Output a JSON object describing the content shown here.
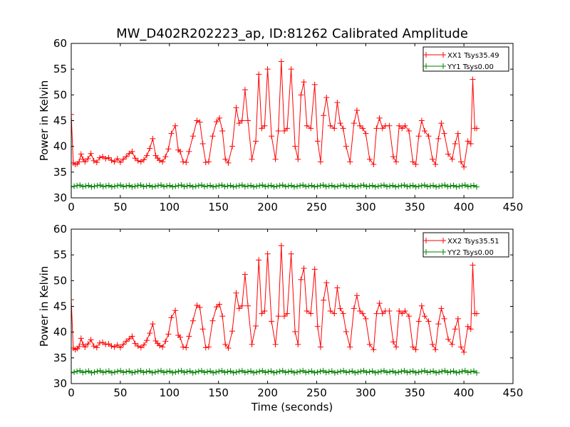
{
  "figure": {
    "title": "MW_D402R202223_ap, ID:81262 Calibrated Amplitude"
  },
  "chart_data": [
    {
      "type": "line",
      "title": "MW_D402R202223_ap, ID:81262 Calibrated Amplitude",
      "xlabel": "",
      "ylabel": "Power in Kelvin",
      "xlim": [
        0,
        450
      ],
      "ylim": [
        30,
        60
      ],
      "xticks": [
        0,
        50,
        100,
        150,
        200,
        250,
        300,
        350,
        400,
        450
      ],
      "yticks": [
        30,
        35,
        40,
        45,
        50,
        55,
        60
      ],
      "grid": false,
      "legend_position": "top-right",
      "markers": "plus",
      "series": [
        {
          "name": "XX1 Tsys35.49",
          "color": "#ff0000",
          "x": [
            0,
            2,
            4,
            6,
            8,
            10,
            12,
            14,
            17,
            20,
            23,
            26,
            29,
            32,
            35,
            38,
            41,
            44,
            47,
            50,
            53,
            56,
            59,
            62,
            65,
            68,
            71,
            74,
            77,
            80,
            83,
            86,
            88,
            90,
            93,
            96,
            99,
            102,
            106,
            109,
            111,
            114,
            117,
            120,
            124,
            128,
            131,
            134,
            137,
            140,
            144,
            148,
            151,
            154,
            157,
            160,
            164,
            168,
            171,
            174,
            177,
            180,
            184,
            188,
            191,
            194,
            197,
            200,
            204,
            208,
            211,
            214,
            217,
            220,
            224,
            228,
            231,
            234,
            237,
            240,
            244,
            248,
            251,
            254,
            257,
            260,
            264,
            268,
            271,
            274,
            277,
            280,
            284,
            288,
            291,
            294,
            297,
            300,
            304,
            308,
            311,
            314,
            317,
            320,
            324,
            328,
            331,
            334,
            337,
            340,
            344,
            348,
            351,
            354,
            357,
            360,
            364,
            368,
            371,
            374,
            377,
            380,
            384,
            388,
            391,
            394,
            397,
            400,
            404,
            407,
            409,
            411,
            413
          ],
          "y": [
            46.2,
            36.8,
            36.5,
            36.6,
            37.0,
            38.5,
            37.5,
            37.0,
            37.6,
            38.6,
            37.2,
            36.9,
            37.8,
            38.0,
            37.6,
            37.8,
            37.3,
            37.0,
            37.6,
            36.9,
            37.5,
            38.0,
            38.6,
            39.0,
            37.7,
            37.2,
            37.0,
            37.4,
            38.2,
            39.6,
            41.5,
            38.2,
            37.7,
            37.3,
            37.0,
            38.0,
            39.5,
            42.5,
            44.0,
            39.3,
            39.0,
            37.0,
            36.9,
            39.0,
            42.0,
            45.0,
            44.7,
            40.5,
            36.9,
            37.0,
            42.0,
            44.8,
            45.5,
            43.0,
            37.5,
            36.8,
            40.0,
            47.5,
            44.5,
            45.0,
            51.0,
            45.0,
            37.5,
            41.0,
            54.0,
            43.5,
            44.0,
            55.0,
            42.0,
            37.5,
            43.0,
            56.5,
            43.0,
            43.5,
            55.0,
            40.0,
            37.5,
            50.0,
            52.5,
            44.0,
            43.5,
            52.0,
            41.0,
            37.0,
            46.0,
            49.5,
            44.0,
            43.5,
            48.5,
            44.5,
            43.5,
            40.0,
            37.0,
            44.5,
            47.0,
            44.0,
            43.5,
            42.5,
            37.5,
            36.5,
            43.5,
            45.5,
            43.5,
            44.0,
            44.0,
            38.0,
            37.0,
            44.0,
            43.5,
            44.0,
            43.0,
            37.0,
            36.5,
            42.0,
            45.0,
            43.0,
            42.0,
            37.5,
            36.5,
            41.5,
            44.5,
            42.5,
            38.5,
            37.5,
            40.5,
            42.5,
            37.0,
            36.0,
            41.0,
            40.5,
            53.0,
            43.5,
            43.5
          ]
        },
        {
          "name": "YY1 Tsys0.00",
          "color": "#008000",
          "x_start": 0,
          "x_end": 413,
          "y_level": 32.3,
          "y_range": [
            32.0,
            32.6
          ]
        }
      ]
    },
    {
      "type": "line",
      "title": "",
      "xlabel": "Time (seconds)",
      "ylabel": "Power in Kelvin",
      "xlim": [
        0,
        450
      ],
      "ylim": [
        30,
        60
      ],
      "xticks": [
        0,
        50,
        100,
        150,
        200,
        250,
        300,
        350,
        400,
        450
      ],
      "yticks": [
        30,
        35,
        40,
        45,
        50,
        55,
        60
      ],
      "grid": false,
      "legend_position": "top-right",
      "markers": "plus",
      "series": [
        {
          "name": "XX2 Tsys35.51",
          "color": "#ff0000",
          "x": [
            0,
            2,
            4,
            6,
            8,
            10,
            12,
            14,
            17,
            20,
            23,
            26,
            29,
            32,
            35,
            38,
            41,
            44,
            47,
            50,
            53,
            56,
            59,
            62,
            65,
            68,
            71,
            74,
            77,
            80,
            83,
            86,
            88,
            90,
            93,
            96,
            99,
            102,
            106,
            109,
            111,
            114,
            117,
            120,
            124,
            128,
            131,
            134,
            137,
            140,
            144,
            148,
            151,
            154,
            157,
            160,
            164,
            168,
            171,
            174,
            177,
            180,
            184,
            188,
            191,
            194,
            197,
            200,
            204,
            208,
            211,
            214,
            217,
            220,
            224,
            228,
            231,
            234,
            237,
            240,
            244,
            248,
            251,
            254,
            257,
            260,
            264,
            268,
            271,
            274,
            277,
            280,
            284,
            288,
            291,
            294,
            297,
            300,
            304,
            308,
            311,
            314,
            317,
            320,
            324,
            328,
            331,
            334,
            337,
            340,
            344,
            348,
            351,
            354,
            357,
            360,
            364,
            368,
            371,
            374,
            377,
            380,
            384,
            388,
            391,
            394,
            397,
            400,
            404,
            407,
            409,
            411,
            413
          ],
          "y": [
            46.3,
            36.9,
            36.6,
            36.8,
            37.2,
            38.8,
            37.6,
            37.1,
            37.7,
            38.5,
            37.3,
            37.0,
            37.9,
            38.0,
            37.6,
            37.7,
            37.3,
            37.1,
            37.5,
            37.0,
            37.6,
            38.2,
            38.7,
            39.2,
            37.8,
            37.3,
            37.0,
            37.5,
            38.4,
            39.8,
            41.6,
            38.3,
            37.8,
            37.4,
            37.1,
            38.2,
            39.6,
            42.8,
            44.2,
            39.4,
            39.0,
            37.1,
            37.0,
            39.2,
            42.2,
            45.2,
            44.8,
            40.6,
            37.0,
            37.1,
            42.2,
            44.9,
            45.4,
            43.1,
            37.6,
            36.9,
            40.2,
            47.6,
            44.6,
            45.1,
            51.2,
            45.1,
            37.6,
            41.2,
            54.0,
            43.6,
            44.1,
            55.2,
            42.1,
            37.6,
            43.1,
            56.8,
            43.1,
            43.6,
            55.2,
            40.1,
            37.6,
            50.2,
            52.4,
            44.1,
            43.6,
            52.2,
            41.1,
            37.1,
            46.2,
            49.6,
            44.1,
            43.6,
            48.6,
            44.6,
            43.6,
            40.1,
            37.1,
            44.6,
            47.1,
            44.1,
            43.6,
            42.6,
            37.6,
            36.6,
            43.6,
            45.6,
            43.6,
            44.1,
            44.1,
            38.1,
            37.1,
            44.1,
            43.6,
            44.1,
            43.1,
            37.1,
            36.6,
            42.1,
            45.1,
            43.1,
            42.1,
            37.6,
            36.6,
            41.6,
            44.6,
            42.6,
            38.6,
            37.6,
            40.6,
            42.6,
            37.1,
            36.1,
            41.1,
            40.6,
            53.0,
            43.6,
            43.6
          ]
        },
        {
          "name": "YY2 Tsys0.00",
          "color": "#008000",
          "x_start": 0,
          "x_end": 413,
          "y_level": 32.3,
          "y_range": [
            32.0,
            32.7
          ]
        }
      ]
    }
  ]
}
